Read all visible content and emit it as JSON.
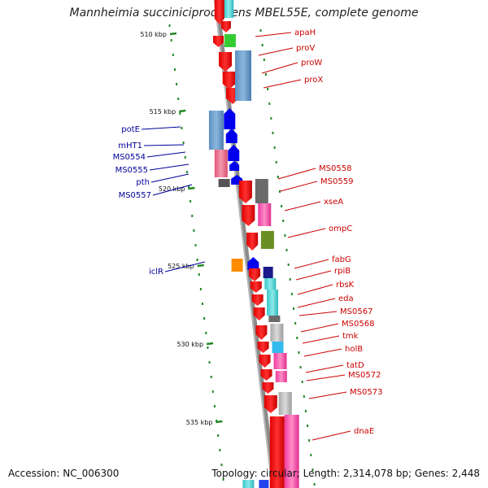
{
  "title": "Mannheimia succiniciproducens MBEL55E, complete genome",
  "accession": "Accession: NC_006300",
  "stats": "Topology: circular; Length: 2,314,078 bp; Genes: 2,448",
  "colors": {
    "backbone": "#808080",
    "forward_label": "#000099",
    "reverse_label": "#cc0000",
    "tick": "#228822"
  },
  "kbp_ticks": [
    {
      "label": "510 kbp",
      "kbp": 510
    },
    {
      "label": "515 kbp",
      "kbp": 515
    },
    {
      "label": "520 kbp",
      "kbp": 520
    },
    {
      "label": "525 kbp",
      "kbp": 525
    },
    {
      "label": "530 kbp",
      "kbp": 530
    },
    {
      "label": "535 kbp",
      "kbp": 535
    }
  ],
  "forward_genes": [
    {
      "name": "potE"
    },
    {
      "name": "mHT1"
    },
    {
      "name": "MS0554"
    },
    {
      "name": "MS0555"
    },
    {
      "name": "pth"
    },
    {
      "name": "MS0557"
    },
    {
      "name": "iclR"
    }
  ],
  "reverse_genes": [
    {
      "name": "apaH"
    },
    {
      "name": "proV"
    },
    {
      "name": "proW"
    },
    {
      "name": "proX"
    },
    {
      "name": "MS0558"
    },
    {
      "name": "MS0559"
    },
    {
      "name": "xseA"
    },
    {
      "name": "ompC"
    },
    {
      "name": "fabG"
    },
    {
      "name": "rpiB"
    },
    {
      "name": "rbsK"
    },
    {
      "name": "eda"
    },
    {
      "name": "MS0567"
    },
    {
      "name": "MS0568"
    },
    {
      "name": "tmk"
    },
    {
      "name": "holB"
    },
    {
      "name": "tatD"
    },
    {
      "name": "MS0572"
    },
    {
      "name": "MS0573"
    },
    {
      "name": "dnaE"
    }
  ]
}
